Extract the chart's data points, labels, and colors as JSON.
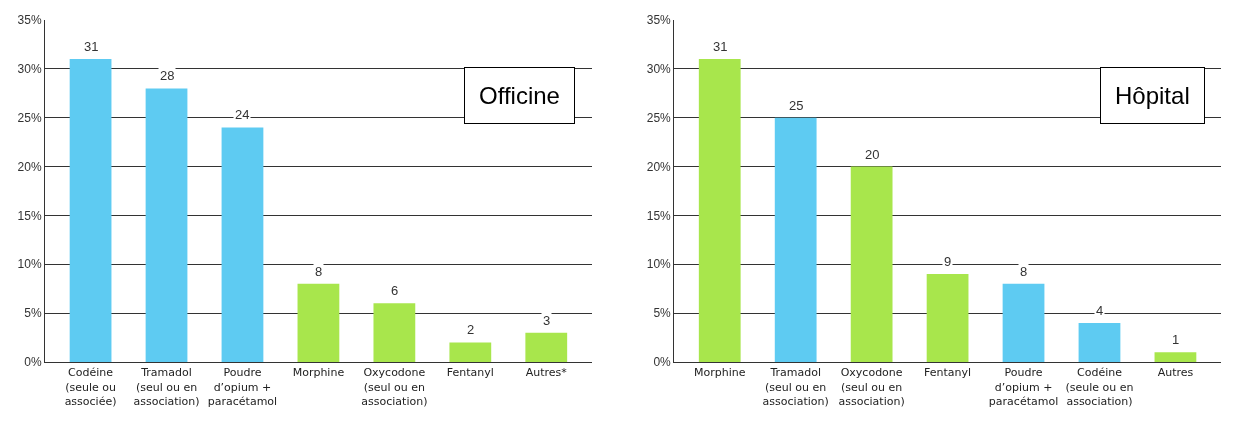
{
  "chart_data": [
    {
      "type": "bar",
      "annotations": [
        "Officine"
      ],
      "categories": [
        "Codéine\n(seule ou\nassociée)",
        "Tramadol\n(seul ou en\nassociation)",
        "Poudre\nd’opium +\nparacétamol",
        "Morphine",
        "Oxycodone\n(seul ou en\nassociation)",
        "Fentanyl",
        "Autres*"
      ],
      "values": [
        31,
        28,
        24,
        8,
        6,
        2,
        3
      ],
      "colors": [
        "#5ecbf2",
        "#5ecbf2",
        "#5ecbf2",
        "#a8e64c",
        "#a8e64c",
        "#a8e64c",
        "#a8e64c"
      ],
      "ylim": [
        0,
        35
      ],
      "yticks": [
        {
          "value": 0,
          "label": "0%"
        },
        {
          "value": 5,
          "label": "5%"
        },
        {
          "value": 10,
          "label": "10%"
        },
        {
          "value": 15,
          "label": "15%"
        },
        {
          "value": 20,
          "label": "20%"
        },
        {
          "value": 25,
          "label": "25%"
        },
        {
          "value": 30,
          "label": "30%"
        },
        {
          "value": 35,
          "label": "35%"
        }
      ],
      "grid": "y",
      "data_labels": true
    },
    {
      "type": "bar",
      "annotations": [
        "Hôpital"
      ],
      "categories": [
        "Morphine",
        "Tramadol\n(seul ou en\nassociation)",
        "Oxycodone\n(seul ou en\nassociation)",
        "Fentanyl",
        "Poudre\nd’opium +\nparacétamol",
        "Codéine\n(seule ou en\nassociation)",
        "Autres"
      ],
      "values": [
        31,
        25,
        20,
        9,
        8,
        4,
        1
      ],
      "colors": [
        "#a8e64c",
        "#5ecbf2",
        "#a8e64c",
        "#a8e64c",
        "#5ecbf2",
        "#5ecbf2",
        "#a8e64c"
      ],
      "ylim": [
        0,
        35
      ],
      "yticks": [
        {
          "value": 0,
          "label": "0%"
        },
        {
          "value": 5,
          "label": "5%"
        },
        {
          "value": 10,
          "label": "10%"
        },
        {
          "value": 15,
          "label": "15%"
        },
        {
          "value": 20,
          "label": "20%"
        },
        {
          "value": 25,
          "label": "25%"
        },
        {
          "value": 30,
          "label": "30%"
        },
        {
          "value": 35,
          "label": "35%"
        }
      ],
      "grid": "y",
      "data_labels": true
    }
  ]
}
